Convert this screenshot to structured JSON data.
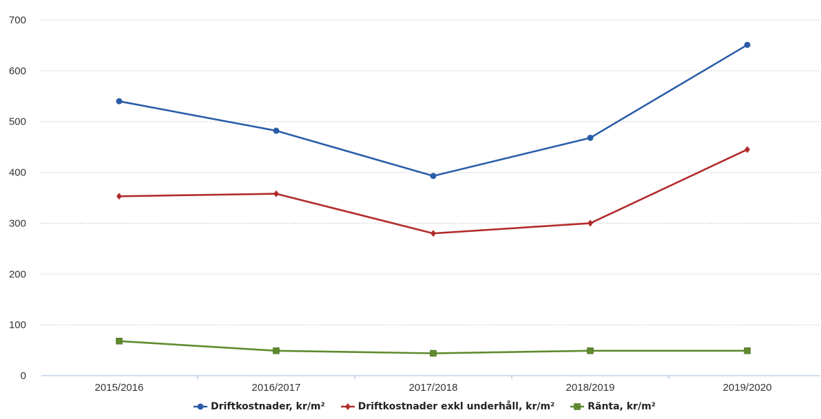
{
  "chart_data": {
    "type": "line",
    "title": "",
    "xlabel": "",
    "ylabel": "",
    "categories": [
      "2015/2016",
      "2016/2017",
      "2017/2018",
      "2018/2019",
      "2019/2020"
    ],
    "ylim": [
      0,
      700
    ],
    "yticks": [
      "0",
      "100",
      "200",
      "300",
      "400",
      "500",
      "600",
      "700"
    ],
    "grid": true,
    "legend_position": "bottom",
    "series": [
      {
        "name": "Driftkostnader, kr/m²",
        "values": [
          540,
          482,
          393,
          468,
          651
        ],
        "color": "#2a5da8",
        "marker": "circle"
      },
      {
        "name": "Driftkostnader exkl underhåll, kr/m²",
        "values": [
          353,
          358,
          280,
          300,
          445
        ],
        "color": "#b22a2a",
        "marker": "diamond"
      },
      {
        "name": "Ränta, kr/m²",
        "values": [
          68,
          49,
          44,
          49,
          49
        ],
        "color": "#5e8a2c",
        "marker": "square"
      }
    ]
  }
}
